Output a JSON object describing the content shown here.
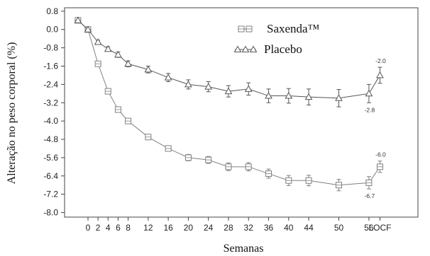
{
  "chart_data": {
    "type": "line",
    "xlabel": "Semanas",
    "ylabel": "Alteração no peso corporal (%)",
    "ylim": [
      -8.2,
      0.95
    ],
    "y_ticks": [
      "0.8",
      "0.0",
      "-0.8",
      "-1.6",
      "-2.4",
      "-3.2",
      "-4.0",
      "-4.8",
      "-5.6",
      "-6.4",
      "-7.2",
      "-8.0"
    ],
    "x_ticks": [
      "0",
      "2",
      "4",
      "6",
      "8",
      "12",
      "16",
      "20",
      "24",
      "28",
      "32",
      "36",
      "40",
      "44",
      "50",
      "56",
      "LOCF"
    ],
    "grid": false,
    "legend_position": "top-right",
    "series": [
      {
        "name": "Saxenda™",
        "marker": "square",
        "color": "#808080",
        "x": [
          "-2",
          "0",
          "2",
          "4",
          "6",
          "8",
          "12",
          "16",
          "20",
          "24",
          "28",
          "32",
          "36",
          "40",
          "44",
          "50",
          "56",
          "LOCF"
        ],
        "values": [
          0.4,
          0.0,
          -1.5,
          -2.7,
          -3.5,
          -4.0,
          -4.7,
          -5.2,
          -5.6,
          -5.7,
          -6.0,
          -6.0,
          -6.3,
          -6.6,
          -6.6,
          -6.8,
          -6.7,
          -6.0
        ],
        "errors": [
          0.05,
          0.03,
          0.08,
          0.08,
          0.08,
          0.1,
          0.1,
          0.12,
          0.14,
          0.15,
          0.17,
          0.18,
          0.2,
          0.22,
          0.23,
          0.25,
          0.27,
          0.25
        ]
      },
      {
        "name": "Placebo",
        "marker": "triangle",
        "color": "#555555",
        "x": [
          "-2",
          "0",
          "2",
          "4",
          "6",
          "8",
          "12",
          "16",
          "20",
          "24",
          "28",
          "32",
          "36",
          "40",
          "44",
          "50",
          "56",
          "LOCF"
        ],
        "values": [
          0.4,
          0.0,
          -0.55,
          -0.85,
          -1.1,
          -1.5,
          -1.75,
          -2.1,
          -2.4,
          -2.5,
          -2.7,
          -2.6,
          -2.9,
          -2.9,
          -2.95,
          -3.0,
          -2.8,
          -2.0
        ],
        "errors": [
          0.05,
          0.03,
          0.08,
          0.1,
          0.12,
          0.13,
          0.15,
          0.18,
          0.2,
          0.22,
          0.25,
          0.27,
          0.3,
          0.32,
          0.35,
          0.38,
          0.4,
          0.35
        ]
      }
    ],
    "annotations": [
      {
        "text": "-2.0",
        "series": "Placebo",
        "x": "LOCF",
        "pos": "above"
      },
      {
        "text": "-2.8",
        "series": "Placebo",
        "x": "56",
        "pos": "below"
      },
      {
        "text": "-6.0",
        "series": "Saxenda™",
        "x": "LOCF",
        "pos": "above"
      },
      {
        "text": "-6.7",
        "series": "Saxenda™",
        "x": "56",
        "pos": "below"
      }
    ]
  }
}
